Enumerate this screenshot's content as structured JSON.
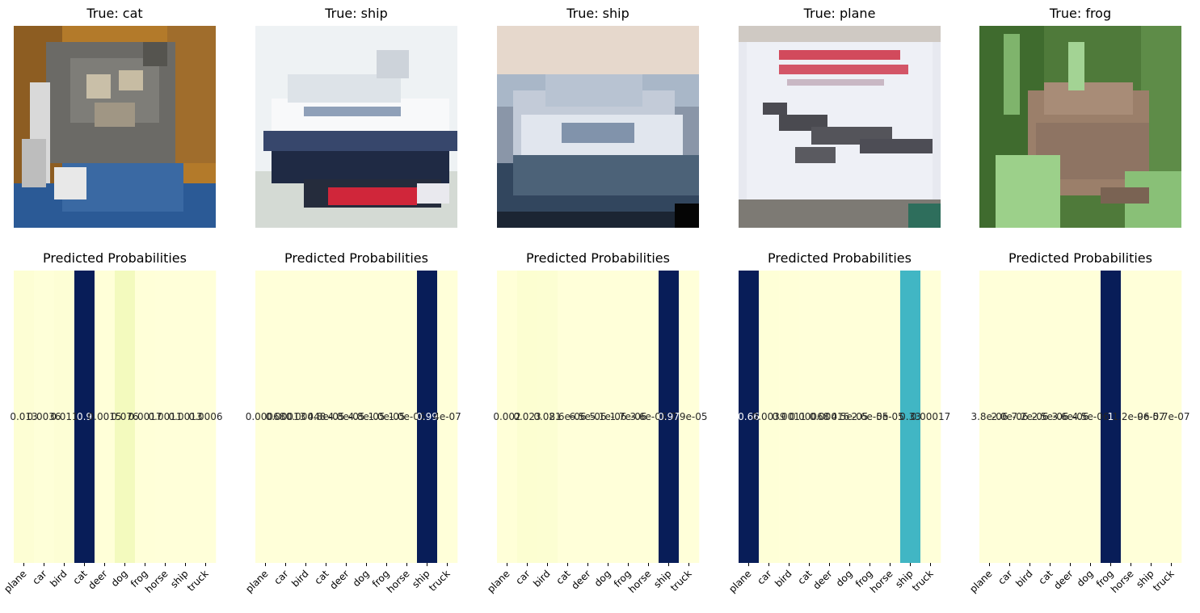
{
  "classes": [
    "plane",
    "car",
    "bird",
    "cat",
    "deer",
    "dog",
    "frog",
    "horse",
    "ship",
    "truck"
  ],
  "colormap": "YlGnBu",
  "panels": [
    {
      "image_title": "True: cat",
      "image_subject": "cat",
      "heatmap_title": "Predicted Probabilities",
      "values": [
        0.013,
        0.0036,
        0.011,
        0.9,
        0.0015,
        0.076,
        0.0017,
        0.0011,
        0.0013,
        0.0006
      ],
      "labels": [
        "0.013",
        "0.0036",
        "0.011",
        "0.9",
        "0.0015",
        "0.076",
        "0.0017",
        "0.0011",
        "0.0013",
        "0.0006"
      ]
    },
    {
      "image_title": "True: ship",
      "image_subject": "ship-red-hull",
      "heatmap_title": "Predicted Probabilities",
      "values": [
        0.00068,
        0.00013,
        0.00048,
        4.8e-05,
        4.8e-05,
        4.8e-05,
        1e-05,
        1e-06,
        0.99,
        4e-07
      ],
      "labels": [
        "0.00068",
        "0.00013",
        "0.00048",
        "4.8e-05",
        "4.8e-05",
        "4.8e-05",
        "1.0e-05",
        "1.0e-06",
        "0.99",
        "4e-07"
      ]
    },
    {
      "image_title": "True: ship",
      "image_subject": "ship-harbor",
      "heatmap_title": "Predicted Probabilities",
      "values": [
        0.002,
        0.023,
        0.021,
        8.6e-06,
        6.5e-06,
        5.1e-06,
        1.7e-06,
        3.6e-06,
        0.97,
        7.9e-05
      ],
      "labels": [
        "0.002",
        "0.023",
        "0.021",
        "8.6e-06",
        "6.5e-06",
        "5.1e-06",
        "1.7e-06",
        "3.6e-06",
        "0.97",
        "7.9e-05"
      ]
    },
    {
      "image_title": "True: plane",
      "image_subject": "plane-poster",
      "heatmap_title": "Predicted Probabilities",
      "values": [
        0.66,
        0.0039,
        0.0011,
        0.00068,
        0.00016,
        4.5e-05,
        2.6e-05,
        5e-05,
        0.33,
        0.00017
      ],
      "labels": [
        "0.66",
        "0.0039",
        "0.0011",
        "0.00068",
        "0.00016",
        "4.5e-05",
        "2.6e-05",
        "5e-05",
        "0.33",
        "0.00017"
      ]
    },
    {
      "image_title": "True: frog",
      "image_subject": "frog",
      "heatmap_title": "Predicted Probabilities",
      "values": [
        3.8e-06,
        2e-06,
        7.2e-06,
        2.5e-06,
        3.6e-06,
        4.5e-06,
        1.0,
        1.2e-06,
        9e-07,
        5.7e-07
      ],
      "labels": [
        "3.8e-06",
        "2.0e-06",
        "7.2e-06",
        "2.5e-06",
        "3.6e-06",
        "4.5e-06",
        "1",
        "1.2e-06",
        "9e-07",
        "5.7e-07"
      ]
    }
  ],
  "chart_data": [
    {
      "type": "heatmap",
      "title": "Predicted Probabilities",
      "categories": [
        "plane",
        "car",
        "bird",
        "cat",
        "deer",
        "dog",
        "frog",
        "horse",
        "ship",
        "truck"
      ],
      "values": [
        0.013,
        0.0036,
        0.011,
        0.9,
        0.0015,
        0.076,
        0.0017,
        0.0011,
        0.0013,
        0.0006
      ]
    },
    {
      "type": "heatmap",
      "title": "Predicted Probabilities",
      "categories": [
        "plane",
        "car",
        "bird",
        "cat",
        "deer",
        "dog",
        "frog",
        "horse",
        "ship",
        "truck"
      ],
      "values": [
        0.00068,
        0.00013,
        0.00048,
        4.8e-05,
        4.8e-05,
        4.8e-05,
        1e-05,
        1e-06,
        0.99,
        4e-07
      ]
    },
    {
      "type": "heatmap",
      "title": "Predicted Probabilities",
      "categories": [
        "plane",
        "car",
        "bird",
        "cat",
        "deer",
        "dog",
        "frog",
        "horse",
        "ship",
        "truck"
      ],
      "values": [
        0.002,
        0.023,
        0.021,
        8.6e-06,
        6.5e-06,
        5.1e-06,
        1.7e-06,
        3.6e-06,
        0.97,
        7.9e-05
      ]
    },
    {
      "type": "heatmap",
      "title": "Predicted Probabilities",
      "categories": [
        "plane",
        "car",
        "bird",
        "cat",
        "deer",
        "dog",
        "frog",
        "horse",
        "ship",
        "truck"
      ],
      "values": [
        0.66,
        0.0039,
        0.0011,
        0.00068,
        0.00016,
        4.5e-05,
        2.6e-05,
        5e-05,
        0.33,
        0.00017
      ]
    },
    {
      "type": "heatmap",
      "title": "Predicted Probabilities",
      "categories": [
        "plane",
        "car",
        "bird",
        "cat",
        "deer",
        "dog",
        "frog",
        "horse",
        "ship",
        "truck"
      ],
      "values": [
        3.8e-06,
        2e-06,
        7.2e-06,
        2.5e-06,
        3.6e-06,
        4.5e-06,
        1.0,
        1.2e-06,
        9e-07,
        5.7e-07
      ]
    }
  ]
}
